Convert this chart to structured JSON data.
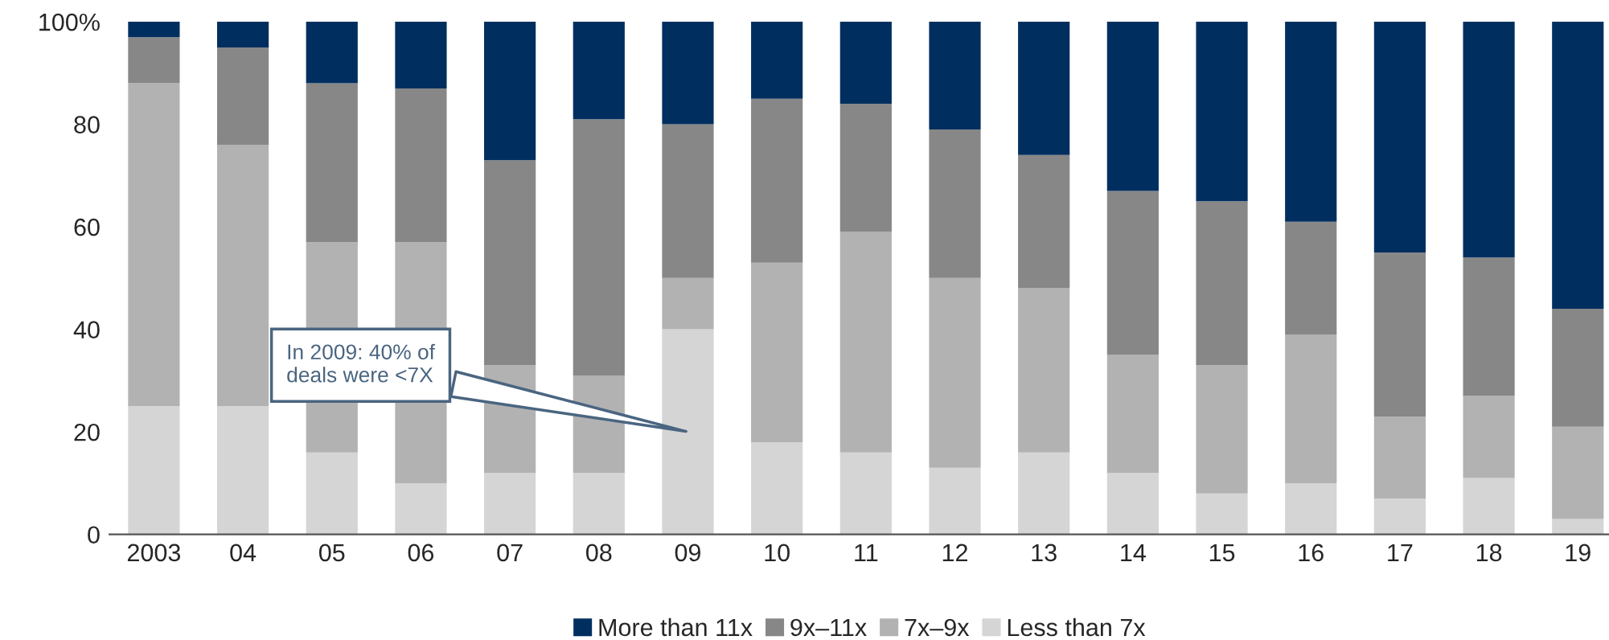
{
  "chart_data": {
    "type": "bar",
    "stacked": true,
    "categories": [
      "2003",
      "04",
      "05",
      "06",
      "07",
      "08",
      "09",
      "10",
      "11",
      "12",
      "13",
      "14",
      "15",
      "16",
      "17",
      "18",
      "19"
    ],
    "series": [
      {
        "name": "Less than 7x",
        "color": "#d5d5d5",
        "values": [
          25,
          25,
          16,
          10,
          12,
          12,
          40,
          18,
          16,
          13,
          16,
          12,
          8,
          10,
          7,
          11,
          3
        ]
      },
      {
        "name": "7x–9x",
        "color": "#b2b2b2",
        "values": [
          63,
          51,
          41,
          47,
          21,
          19,
          10,
          35,
          43,
          37,
          32,
          23,
          25,
          29,
          16,
          16,
          18
        ]
      },
      {
        "name": "9x–11x",
        "color": "#878787",
        "values": [
          9,
          19,
          31,
          30,
          40,
          50,
          30,
          32,
          25,
          29,
          26,
          32,
          32,
          22,
          32,
          27,
          23
        ]
      },
      {
        "name": "More than 11x",
        "color": "#002f5f",
        "values": [
          3,
          5,
          12,
          13,
          27,
          19,
          20,
          15,
          16,
          21,
          26,
          33,
          35,
          39,
          45,
          46,
          56
        ]
      }
    ],
    "ylim": [
      0,
      100
    ],
    "yticks": [
      0,
      20,
      40,
      60,
      80,
      {
        "value": 100,
        "label": "100%"
      }
    ],
    "grid": false,
    "legend": "bottom",
    "annotations": [
      "In 2009: 40% of\ndeals were <7X"
    ]
  }
}
